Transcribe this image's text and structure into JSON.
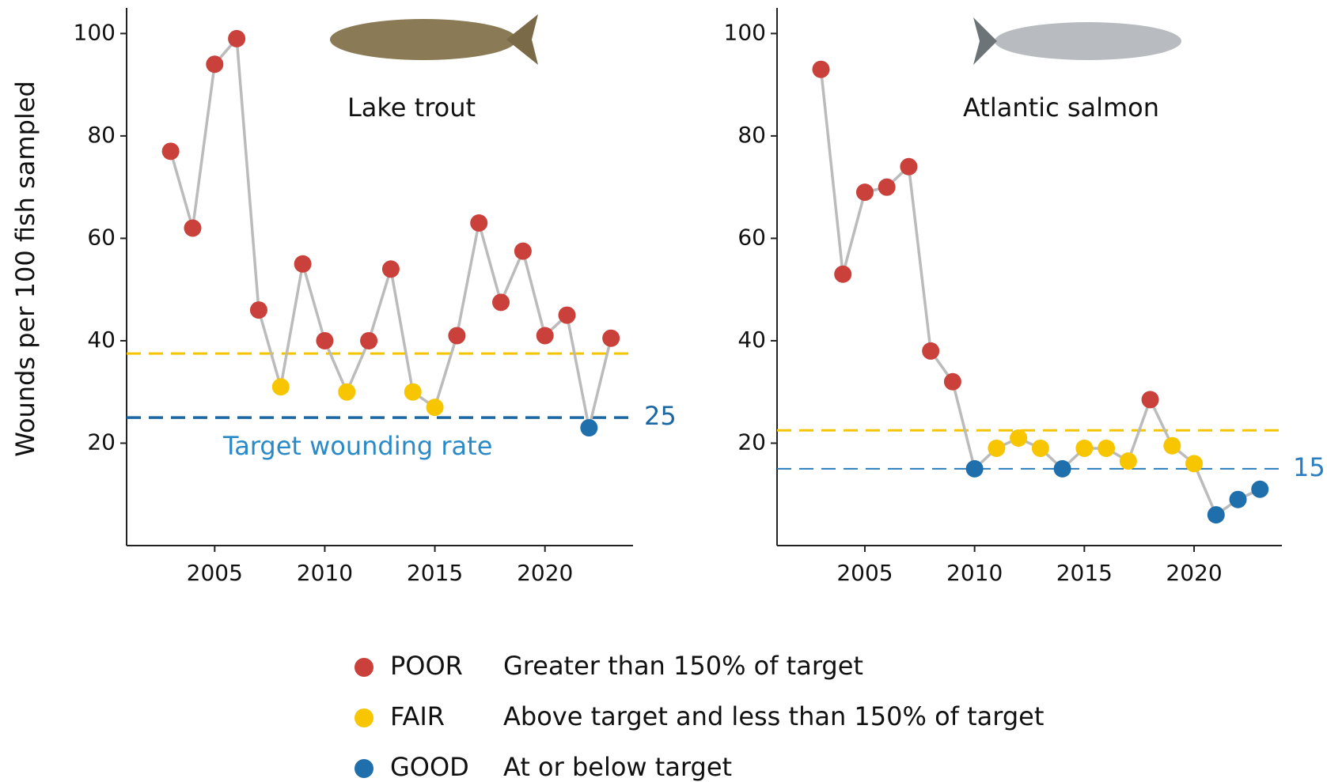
{
  "chart_data": [
    {
      "type": "line",
      "title": "Lake trout",
      "y_label": "Wounds per 100 fish sampled",
      "annotation": "Target wounding rate",
      "x": [
        2003,
        2004,
        2005,
        2006,
        2007,
        2008,
        2009,
        2010,
        2011,
        2012,
        2013,
        2014,
        2015,
        2016,
        2017,
        2018,
        2019,
        2020,
        2021,
        2022,
        2023
      ],
      "series": [
        {
          "color": "#bbbbbb",
          "values": [
            77,
            62,
            94,
            99,
            46,
            31,
            55,
            40,
            30,
            40,
            54,
            30,
            27,
            41,
            63,
            47.5,
            57.5,
            41,
            45,
            23,
            40.5
          ],
          "point_colors": [
            "#c9413a",
            "#c9413a",
            "#c9413a",
            "#c9413a",
            "#c9413a",
            "#f7c600",
            "#c9413a",
            "#c9413a",
            "#f7c600",
            "#c9413a",
            "#c9413a",
            "#f7c600",
            "#f7c600",
            "#c9413a",
            "#c9413a",
            "#c9413a",
            "#c9413a",
            "#c9413a",
            "#c9413a",
            "#1f6fad",
            "#c9413a"
          ]
        }
      ],
      "reference_lines": [
        {
          "value": 37.5,
          "color": "#f5c400",
          "width": 3,
          "show_label": false
        },
        {
          "value": 25,
          "color": "#1a67a3",
          "width": 3.5,
          "show_label": true
        }
      ],
      "xlim": [
        2001,
        2024
      ],
      "ylim": [
        0,
        105
      ],
      "xticks": [
        2005,
        2010,
        2015,
        2020
      ],
      "yticks": [
        20,
        40,
        60,
        80,
        100
      ]
    },
    {
      "type": "line",
      "title": "Atlantic salmon",
      "x": [
        2003,
        2004,
        2005,
        2006,
        2007,
        2008,
        2009,
        2010,
        2011,
        2012,
        2013,
        2014,
        2015,
        2016,
        2017,
        2018,
        2019,
        2020,
        2021,
        2022,
        2023
      ],
      "series": [
        {
          "color": "#bbbbbb",
          "values": [
            93,
            53,
            69,
            70,
            74,
            38,
            32,
            15,
            19,
            21,
            19,
            15,
            19,
            19,
            16.5,
            28.5,
            19.5,
            16,
            6,
            9,
            11
          ],
          "point_colors": [
            "#c9413a",
            "#c9413a",
            "#c9413a",
            "#c9413a",
            "#c9413a",
            "#c9413a",
            "#c9413a",
            "#1f6fad",
            "#f7c600",
            "#f7c600",
            "#f7c600",
            "#1f6fad",
            "#f7c600",
            "#f7c600",
            "#f7c600",
            "#c9413a",
            "#f7c600",
            "#f7c600",
            "#1f6fad",
            "#1f6fad",
            "#1f6fad"
          ]
        }
      ],
      "reference_lines": [
        {
          "value": 22.5,
          "color": "#f5c400",
          "width": 3,
          "show_label": false
        },
        {
          "value": 15,
          "color": "#2a7ec0",
          "width": 2,
          "show_label": true
        }
      ],
      "xlim": [
        2001,
        2024
      ],
      "ylim": [
        0,
        105
      ],
      "xticks": [
        2005,
        2010,
        2015,
        2020
      ],
      "yticks": [
        20,
        40,
        60,
        80,
        100
      ]
    }
  ],
  "legend": [
    {
      "label": "POOR",
      "description": "Greater than 150% of target",
      "color": "#c9413a"
    },
    {
      "label": "FAIR",
      "description": "Above target and less than 150% of target",
      "color": "#f7c600"
    },
    {
      "label": "GOOD",
      "description": "At or below target",
      "color": "#1f6fad"
    }
  ]
}
